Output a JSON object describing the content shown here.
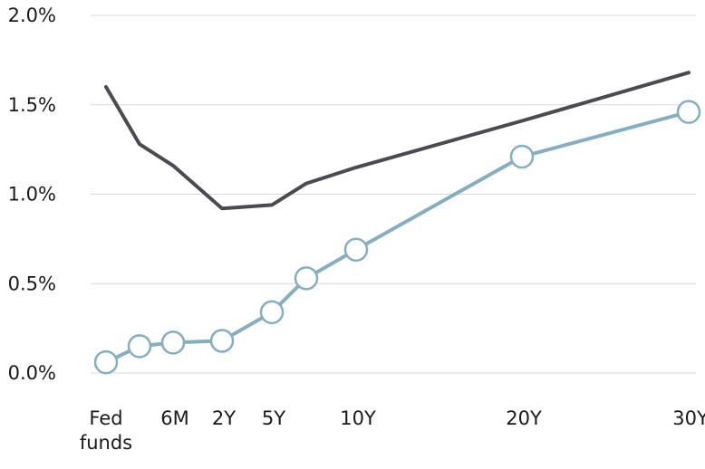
{
  "chart_data": {
    "type": "line",
    "title": "",
    "xlabel": "",
    "ylabel": "",
    "ylim": [
      0,
      2.0
    ],
    "y_ticks": [
      "0.0%",
      "0.5%",
      "1.0%",
      "1.5%",
      "2.0%"
    ],
    "y_tick_values": [
      0,
      0.5,
      1.0,
      1.5,
      2.0
    ],
    "x_ticks": [
      {
        "label": [
          "Fed",
          "funds"
        ],
        "x": 0
      },
      {
        "label": [
          "6M"
        ],
        "x": 0.5
      },
      {
        "label": [
          "2Y"
        ],
        "x": 2
      },
      {
        "label": [
          "5Y"
        ],
        "x": 5
      },
      {
        "label": [
          "10Y"
        ],
        "x": 10
      },
      {
        "label": [
          "20Y"
        ],
        "x": 20
      },
      {
        "label": [
          "30Y"
        ],
        "x": 30
      }
    ],
    "grid": true,
    "series": [
      {
        "color": "#4a4a50",
        "markers": false,
        "points": [
          {
            "x": 0,
            "y": 1.6
          },
          {
            "x": 0.25,
            "y": 1.28
          },
          {
            "x": 0.5,
            "y": 1.16
          },
          {
            "x": 2,
            "y": 0.92
          },
          {
            "x": 5,
            "y": 0.94
          },
          {
            "x": 7,
            "y": 1.06
          },
          {
            "x": 10,
            "y": 1.15
          },
          {
            "x": 20,
            "y": 1.41
          },
          {
            "x": 30,
            "y": 1.68
          }
        ]
      },
      {
        "color": "#85aebf",
        "markers": true,
        "points": [
          {
            "x": 0,
            "y": 0.06
          },
          {
            "x": 0.25,
            "y": 0.15
          },
          {
            "x": 0.5,
            "y": 0.17
          },
          {
            "x": 2,
            "y": 0.18
          },
          {
            "x": 5,
            "y": 0.34
          },
          {
            "x": 7,
            "y": 0.53
          },
          {
            "x": 10,
            "y": 0.69
          },
          {
            "x": 20,
            "y": 1.21
          },
          {
            "x": 30,
            "y": 1.46
          }
        ]
      }
    ]
  }
}
